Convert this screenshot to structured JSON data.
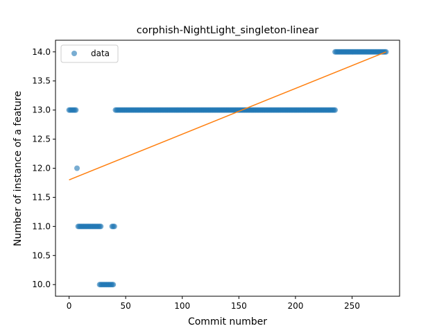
{
  "chart_data": {
    "type": "scatter",
    "title": "corphish-NightLight_singleton-linear",
    "xlabel": "Commit number",
    "ylabel": "Number of instance of a feature",
    "xlim": [
      -12,
      292
    ],
    "ylim": [
      9.8,
      14.2
    ],
    "xticks": [
      0,
      50,
      100,
      150,
      200,
      250
    ],
    "yticks": [
      10.0,
      10.5,
      11.0,
      11.5,
      12.0,
      12.5,
      13.0,
      13.5,
      14.0
    ],
    "yticks_labels": [
      "10.0",
      "10.5",
      "11.0",
      "11.5",
      "12.0",
      "12.5",
      "13.0",
      "13.5",
      "14.0"
    ],
    "legend": {
      "position": "upper-left",
      "entries": [
        "data"
      ]
    },
    "colors": {
      "data": "#1f77b4",
      "fit": "#ff7f0e"
    },
    "series": [
      {
        "name": "data",
        "kind": "points",
        "segments": [
          {
            "x_start": 0,
            "x_end": 6,
            "y": 13
          },
          {
            "x_start": 7,
            "x_end": 7,
            "y": 12
          },
          {
            "x_start": 8,
            "x_end": 28,
            "y": 11
          },
          {
            "x_start": 27,
            "x_end": 39,
            "y": 10
          },
          {
            "x_start": 38,
            "x_end": 40,
            "y": 11
          },
          {
            "x_start": 41,
            "x_end": 235,
            "y": 13
          },
          {
            "x_start": 235,
            "x_end": 280,
            "y": 14
          }
        ]
      },
      {
        "kind": "line",
        "x": [
          0,
          280
        ],
        "y": [
          11.8,
          14.0
        ]
      }
    ]
  }
}
